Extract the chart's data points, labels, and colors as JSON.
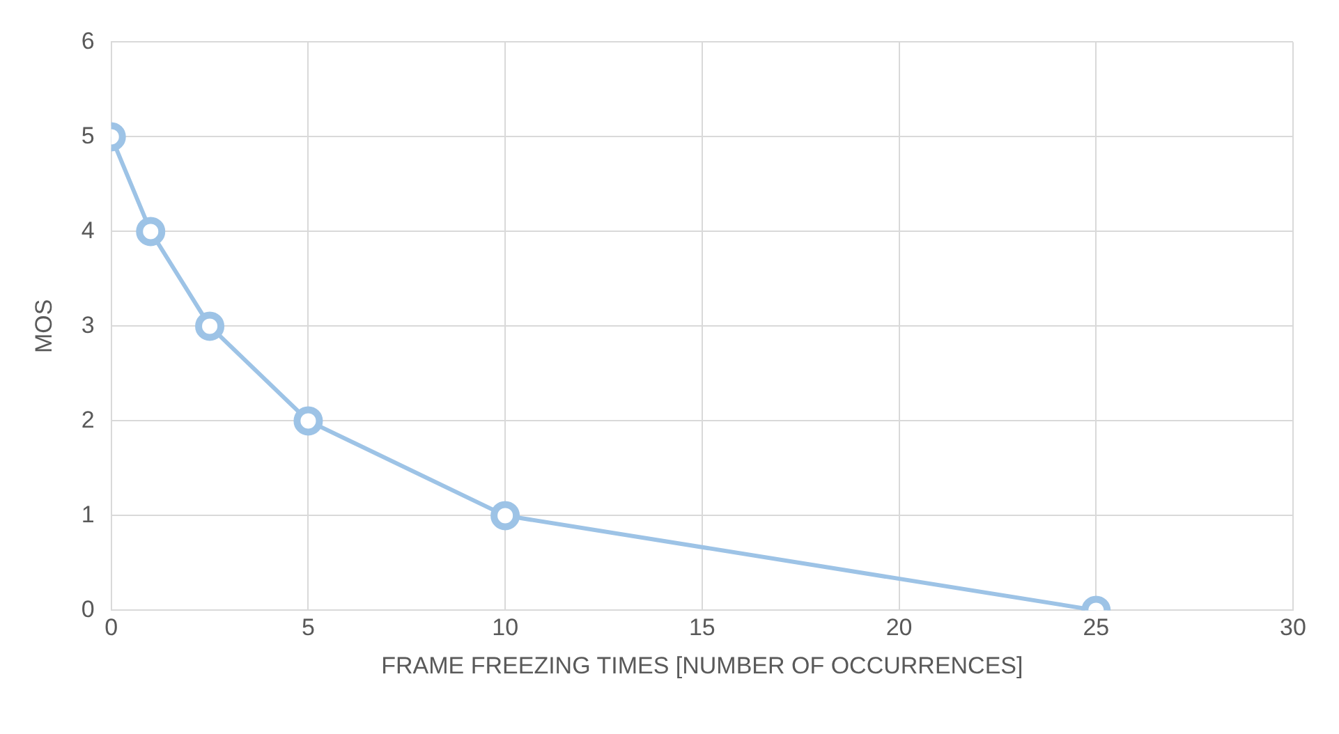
{
  "chart_data": {
    "type": "line",
    "xlabel": "FRAME FREEZING TIMES [NUMBER OF OCCURRENCES]",
    "ylabel": "MOS",
    "x": [
      0,
      1,
      2.5,
      5,
      10,
      25
    ],
    "series": [
      {
        "color": "#9dc3e6",
        "values": [
          5,
          4,
          3,
          2,
          1,
          0
        ]
      }
    ],
    "xlim": [
      0,
      30
    ],
    "xticks": [
      0,
      5,
      10,
      15,
      20,
      25,
      30
    ],
    "ylim": [
      0,
      6
    ],
    "yticks": [
      0,
      1,
      2,
      3,
      4,
      5,
      6
    ],
    "grid": true,
    "legend": false,
    "marker": "circle",
    "line_style": "solid"
  }
}
